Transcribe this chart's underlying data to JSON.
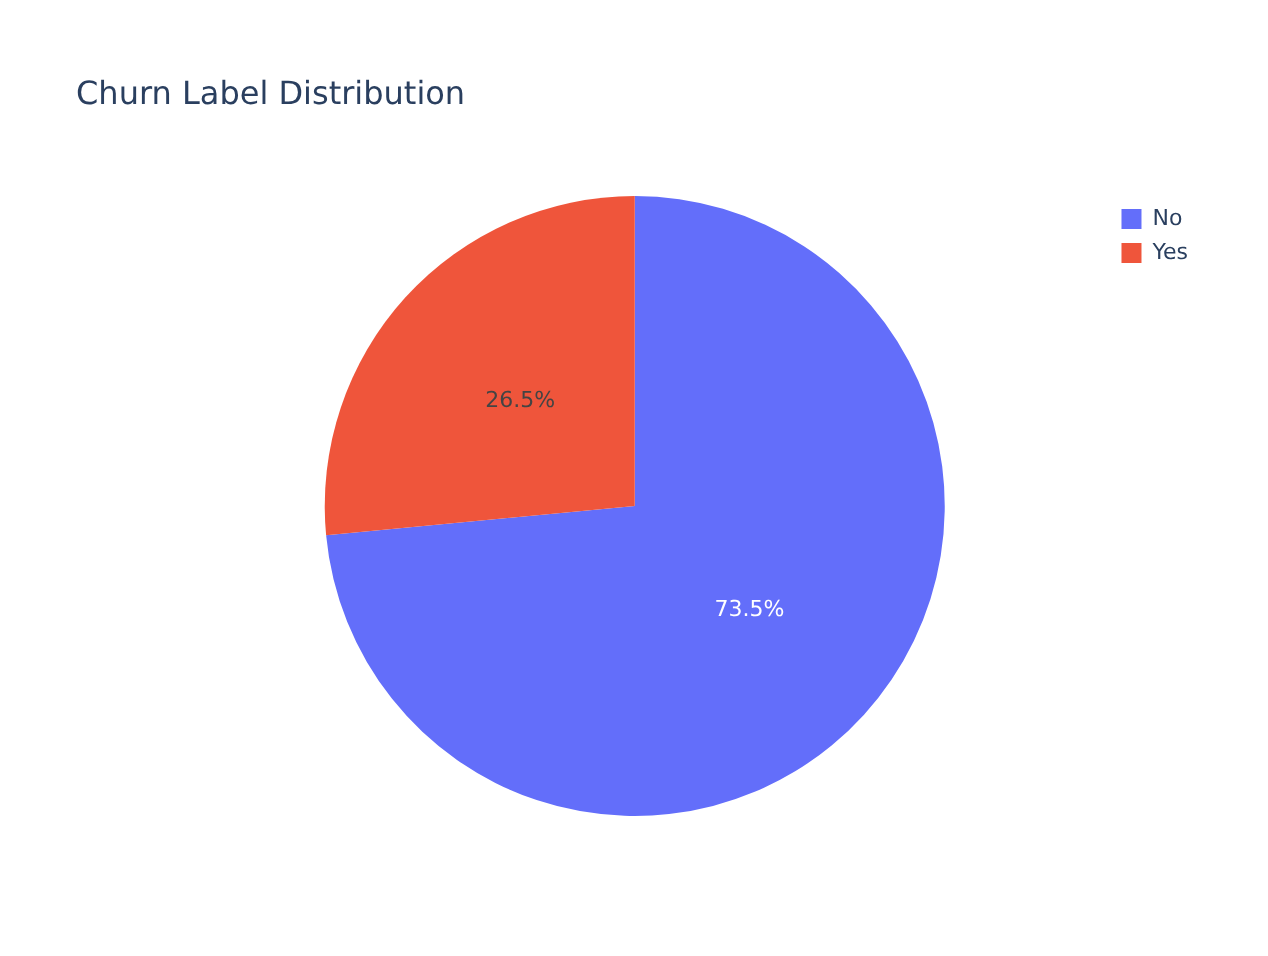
{
  "chart_data": {
    "type": "pie",
    "title": "Churn Label Distribution",
    "categories": [
      "No",
      "Yes"
    ],
    "values": [
      73.5,
      26.5
    ],
    "colors": [
      "#636efa",
      "#ef553b"
    ],
    "value_labels": [
      "73.5%",
      "26.5%"
    ],
    "legend": "top right"
  }
}
